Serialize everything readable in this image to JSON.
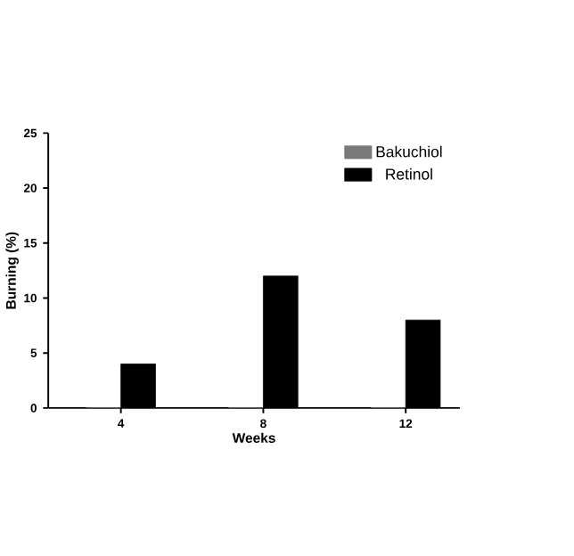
{
  "chart_data": {
    "type": "bar",
    "xlabel": "Weeks",
    "ylabel": "Burning (%)",
    "categories": [
      "4",
      "8",
      "12"
    ],
    "series": [
      {
        "name": "Bakuchiol",
        "color": "#7a7a7a",
        "values": [
          0,
          0,
          0
        ]
      },
      {
        "name": "Retinol",
        "color": "#000000",
        "values": [
          4,
          12,
          8
        ]
      }
    ],
    "ylim": [
      0,
      25
    ],
    "yticks": [
      0,
      5,
      10,
      15,
      20,
      25
    ],
    "legend": "top right",
    "grid": false
  }
}
